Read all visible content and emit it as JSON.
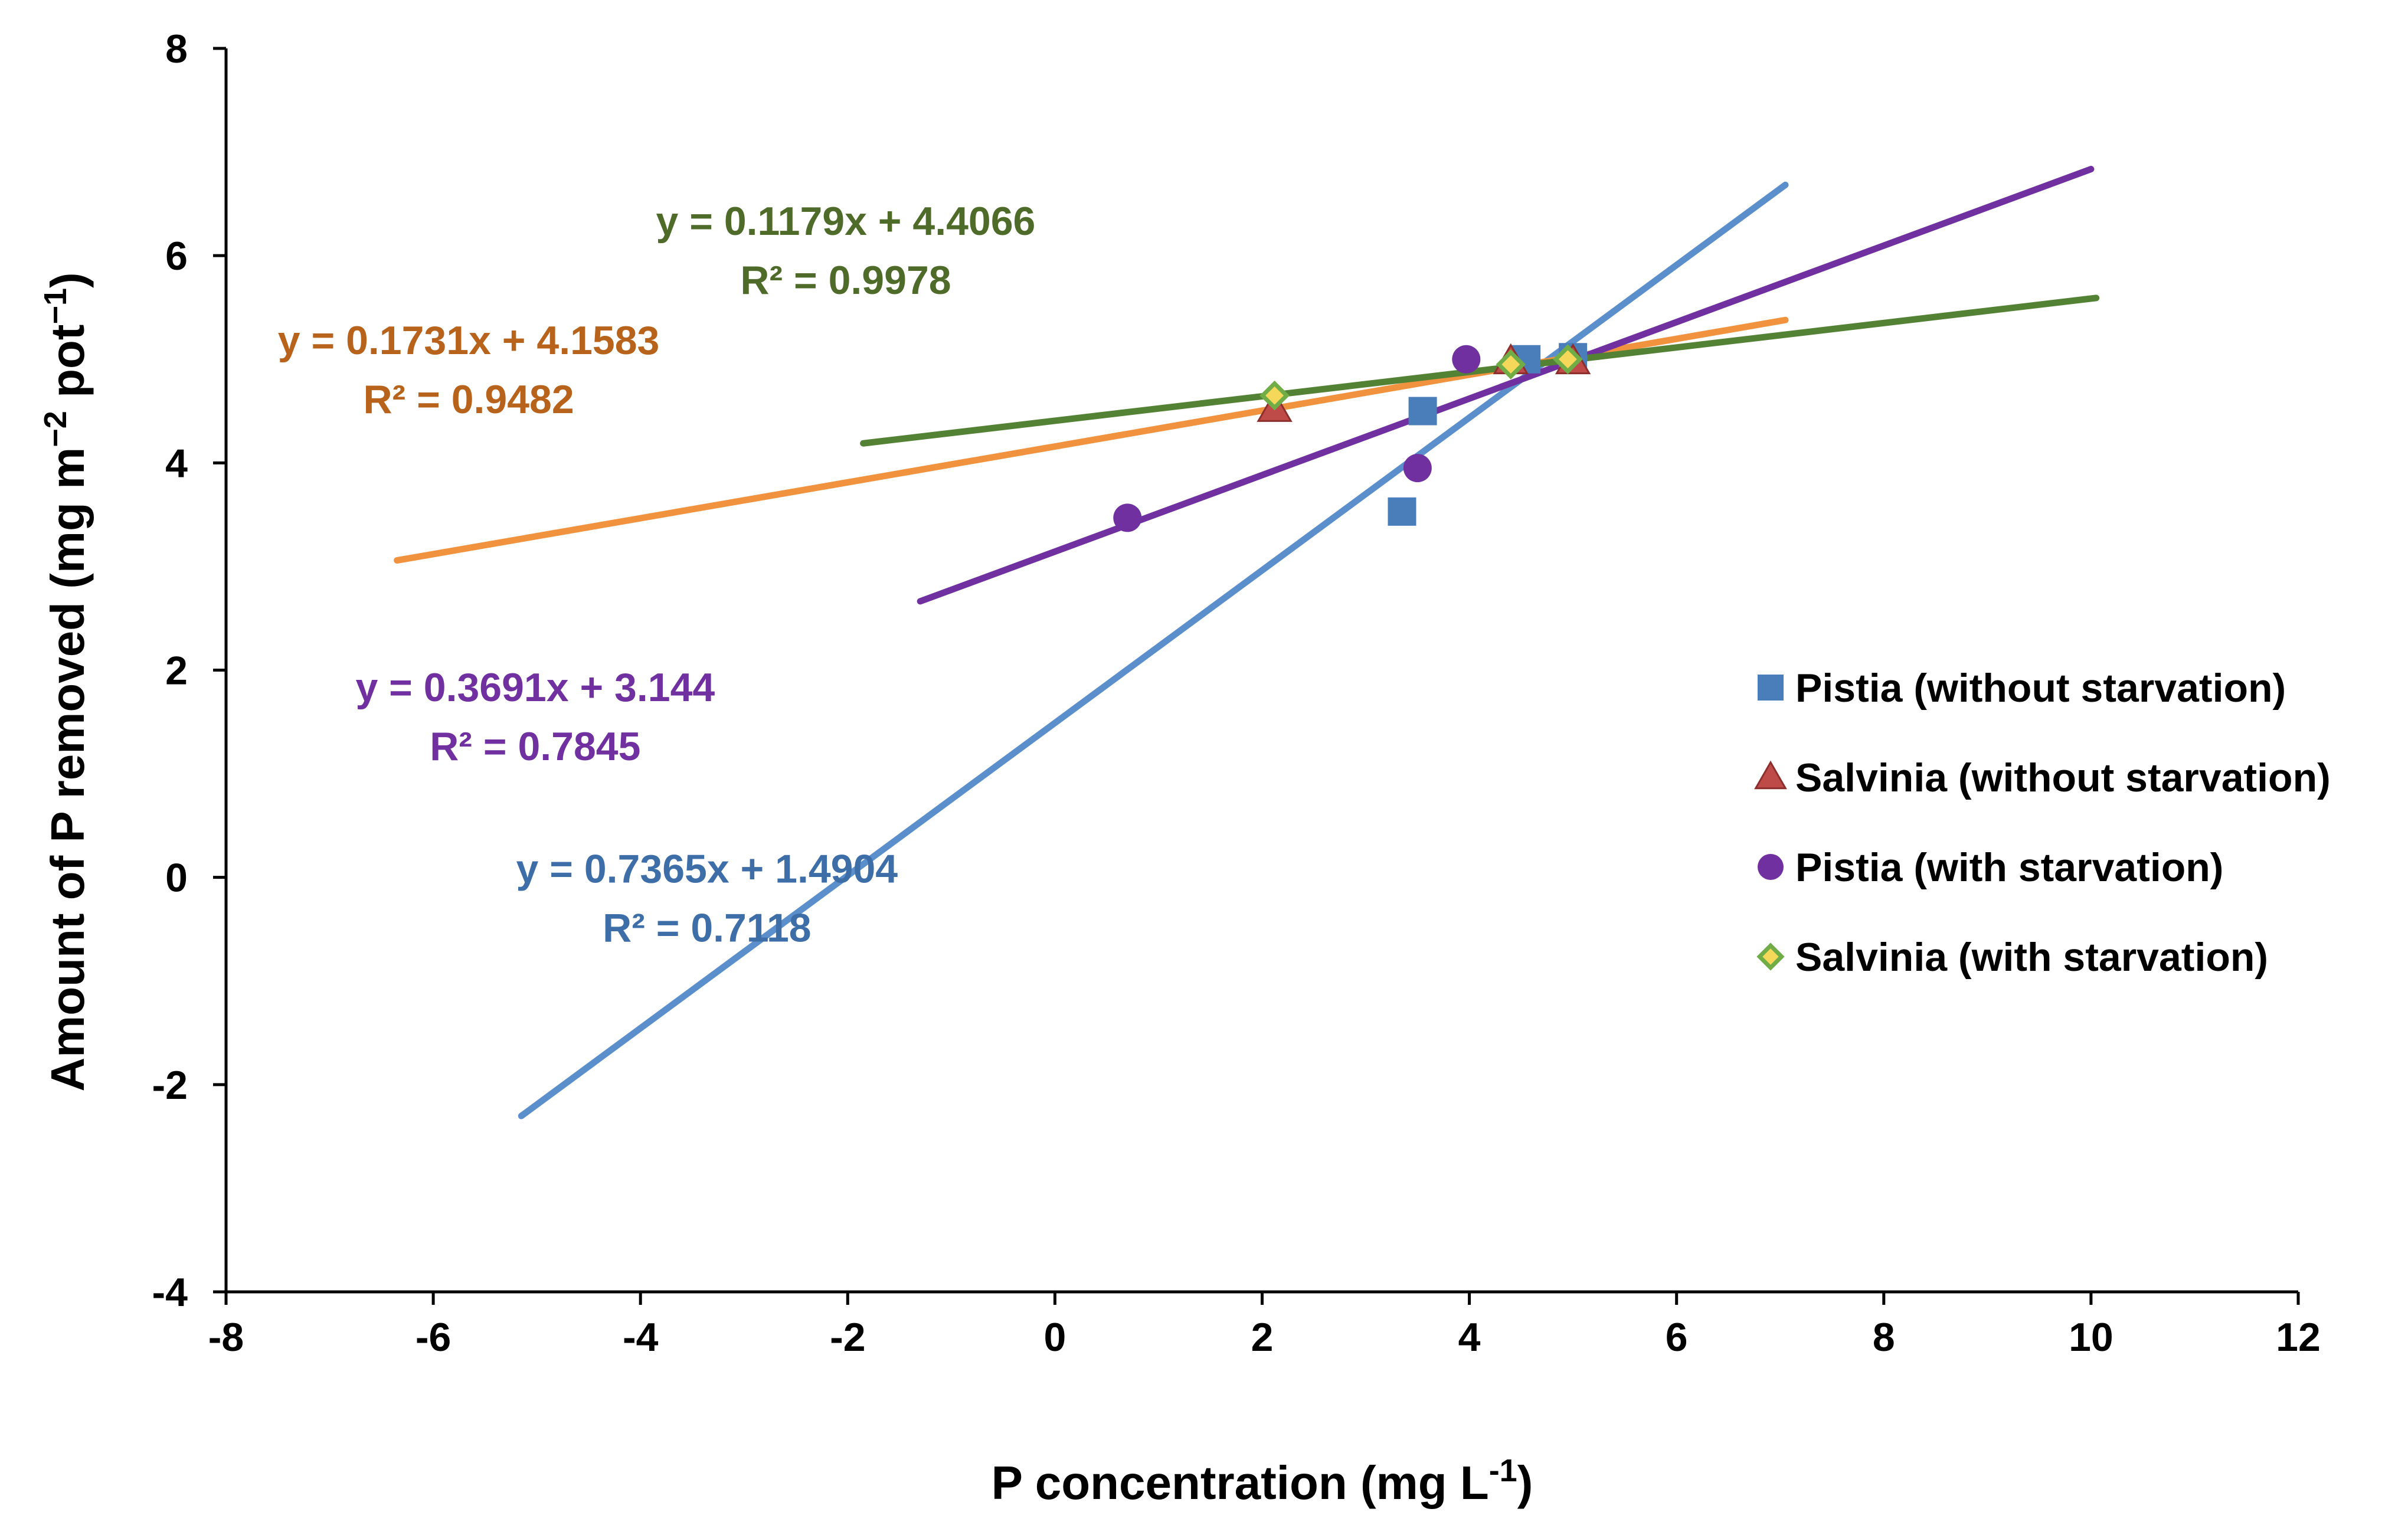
{
  "chart_data": {
    "type": "scatter",
    "title": "",
    "xlabel": {
      "main": "P concentration (mg L",
      "sup": "-1",
      "tail": ")"
    },
    "ylabel": {
      "main": "Amount of P removed (mg m",
      "sup1": "−2",
      "mid": " pot",
      "sup2": "−1",
      "tail": ")"
    },
    "xlim": [
      -8,
      12
    ],
    "ylim": [
      -4,
      8
    ],
    "xticks": [
      -8,
      -6,
      -4,
      -2,
      0,
      2,
      4,
      6,
      8,
      10,
      12
    ],
    "yticks": [
      -4,
      -2,
      0,
      2,
      4,
      6,
      8
    ],
    "xtick_labels": [
      "-8",
      "-6",
      "-4",
      "-2",
      "0",
      "2",
      "4",
      "6",
      "8",
      "10",
      "12"
    ],
    "ytick_labels": [
      "-4",
      "-2",
      "0",
      "2",
      "4",
      "6",
      "8"
    ],
    "legend_position": "right",
    "series": [
      {
        "name": "Pistia (without starvation)",
        "marker": "square",
        "color": "#4a7ebb",
        "points": [
          [
            3.35,
            3.53
          ],
          [
            3.55,
            4.5
          ],
          [
            4.55,
            5.0
          ],
          [
            5.0,
            5.02
          ]
        ]
      },
      {
        "name": "Salvinia (without starvation)",
        "marker": "triangle",
        "color": "#be4b48",
        "points": [
          [
            2.12,
            4.52
          ],
          [
            4.4,
            4.98
          ],
          [
            5.0,
            4.98
          ]
        ]
      },
      {
        "name": "Pistia (with starvation)",
        "marker": "circle",
        "color": "#7030a0",
        "points": [
          [
            0.7,
            3.47
          ],
          [
            3.5,
            3.95
          ],
          [
            3.97,
            5.0
          ]
        ]
      },
      {
        "name": "Salvinia (with starvation)",
        "marker": "diamond",
        "color": "#70ad47",
        "points": [
          [
            2.12,
            4.65
          ],
          [
            4.4,
            4.95
          ],
          [
            4.95,
            5.0
          ]
        ]
      }
    ],
    "trendlines": [
      {
        "slope": 0.7365,
        "intercept": 1.4904,
        "x_range": [
          -5.15,
          7.05
        ],
        "color": "#5b8fcc",
        "eq": "y = 0.7365x + 1.4904",
        "r2": "R² = 0.7118",
        "eq_color": "#3e6ea8"
      },
      {
        "slope": 0.1731,
        "intercept": 4.1583,
        "x_range": [
          -6.35,
          7.05
        ],
        "color": "#f0923e",
        "eq": "y = 0.1731x + 4.1583",
        "r2": "R² = 0.9482",
        "eq_color": "#b8631c"
      },
      {
        "slope": 0.3691,
        "intercept": 3.144,
        "x_range": [
          -1.3,
          10.0
        ],
        "color": "#7030a0",
        "eq": "y = 0.3691x + 3.144",
        "r2": "R² = 0.7845",
        "eq_color": "#7030a0"
      },
      {
        "slope": 0.1179,
        "intercept": 4.4066,
        "x_range": [
          -1.85,
          10.05
        ],
        "color": "#548235",
        "eq": "y = 0.1179x + 4.4066",
        "r2": "R² = 0.9978",
        "eq_color": "#4f6b2a"
      }
    ]
  }
}
